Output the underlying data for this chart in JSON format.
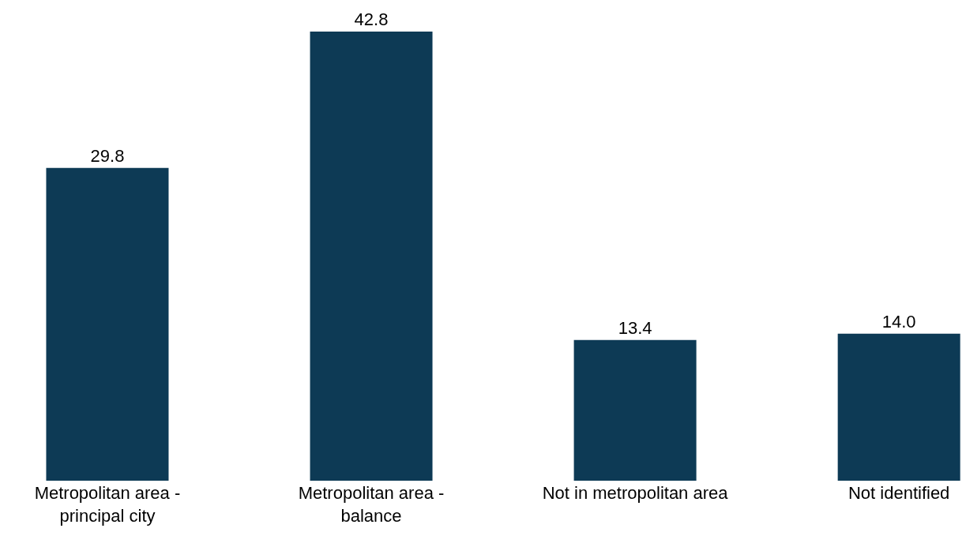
{
  "chart_data": {
    "type": "bar",
    "categories": [
      "Metropolitan area -\nprincipal city",
      "Metropolitan area -\nbalance",
      "Not in metropolitan area",
      "Not identified"
    ],
    "values": [
      29.8,
      42.8,
      13.4,
      14.0
    ],
    "color": "#0d3a55",
    "value_labels": [
      "29.8",
      "42.8",
      "13.4",
      "14.0"
    ]
  }
}
